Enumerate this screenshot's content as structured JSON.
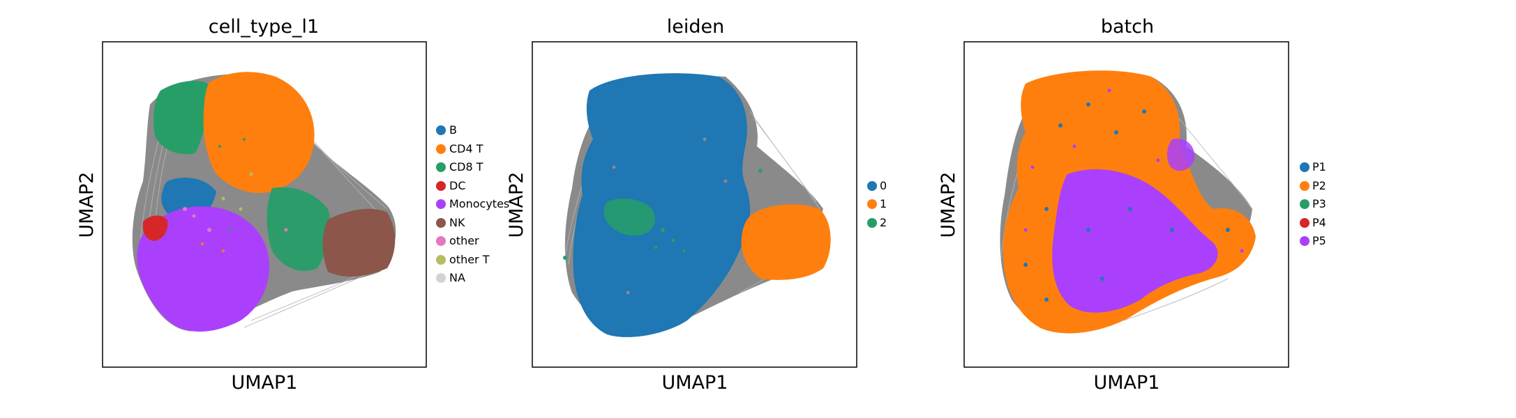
{
  "figure": {
    "panels": [
      {
        "title": "cell_type_l1",
        "xlabel": "UMAP1",
        "ylabel": "UMAP2",
        "legend": [
          {
            "label": "B",
            "color": "#1f77b4"
          },
          {
            "label": "CD4 T",
            "color": "#ff7f0e"
          },
          {
            "label": "CD8 T",
            "color": "#279e68"
          },
          {
            "label": "DC",
            "color": "#d62728"
          },
          {
            "label": "Monocytes",
            "color": "#aa40fc"
          },
          {
            "label": "NK",
            "color": "#8c564b"
          },
          {
            "label": "other",
            "color": "#e377c2"
          },
          {
            "label": "other T",
            "color": "#b5bd61"
          },
          {
            "label": "NA",
            "color": "#d3d3d3"
          }
        ]
      },
      {
        "title": "leiden",
        "xlabel": "UMAP1",
        "ylabel": "UMAP2",
        "legend": [
          {
            "label": "0",
            "color": "#1f77b4"
          },
          {
            "label": "1",
            "color": "#ff7f0e"
          },
          {
            "label": "2",
            "color": "#279e68"
          }
        ]
      },
      {
        "title": "batch",
        "xlabel": "UMAP1",
        "ylabel": "UMAP2",
        "legend": [
          {
            "label": "P1",
            "color": "#1f77b4"
          },
          {
            "label": "P2",
            "color": "#ff7f0e"
          },
          {
            "label": "P3",
            "color": "#279e68"
          },
          {
            "label": "P4",
            "color": "#d62728"
          },
          {
            "label": "P5",
            "color": "#aa40fc"
          }
        ]
      }
    ]
  },
  "chart_data": [
    {
      "type": "scatter",
      "title": "cell_type_l1",
      "xlabel": "UMAP1",
      "ylabel": "UMAP2",
      "ticks": "none",
      "grid": false,
      "legend_position": "right",
      "series": [
        {
          "name": "B",
          "color": "#1f77b4"
        },
        {
          "name": "CD4 T",
          "color": "#ff7f0e"
        },
        {
          "name": "CD8 T",
          "color": "#279e68"
        },
        {
          "name": "DC",
          "color": "#d62728"
        },
        {
          "name": "Monocytes",
          "color": "#aa40fc"
        },
        {
          "name": "NK",
          "color": "#8c564b"
        },
        {
          "name": "other",
          "color": "#e377c2"
        },
        {
          "name": "other T",
          "color": "#b5bd61"
        },
        {
          "name": "NA",
          "color": "#d3d3d3"
        }
      ],
      "edge_color": "#808080"
    },
    {
      "type": "scatter",
      "title": "leiden",
      "xlabel": "UMAP1",
      "ylabel": "UMAP2",
      "ticks": "none",
      "grid": false,
      "legend_position": "right",
      "series": [
        {
          "name": "0",
          "color": "#1f77b4"
        },
        {
          "name": "1",
          "color": "#ff7f0e"
        },
        {
          "name": "2",
          "color": "#279e68"
        }
      ],
      "edge_color": "#808080"
    },
    {
      "type": "scatter",
      "title": "batch",
      "xlabel": "UMAP1",
      "ylabel": "UMAP2",
      "ticks": "none",
      "grid": false,
      "legend_position": "right",
      "series": [
        {
          "name": "P1",
          "color": "#1f77b4"
        },
        {
          "name": "P2",
          "color": "#ff7f0e"
        },
        {
          "name": "P3",
          "color": "#279e68"
        },
        {
          "name": "P4",
          "color": "#d62728"
        },
        {
          "name": "P5",
          "color": "#aa40fc"
        }
      ],
      "edge_color": "#808080"
    }
  ]
}
